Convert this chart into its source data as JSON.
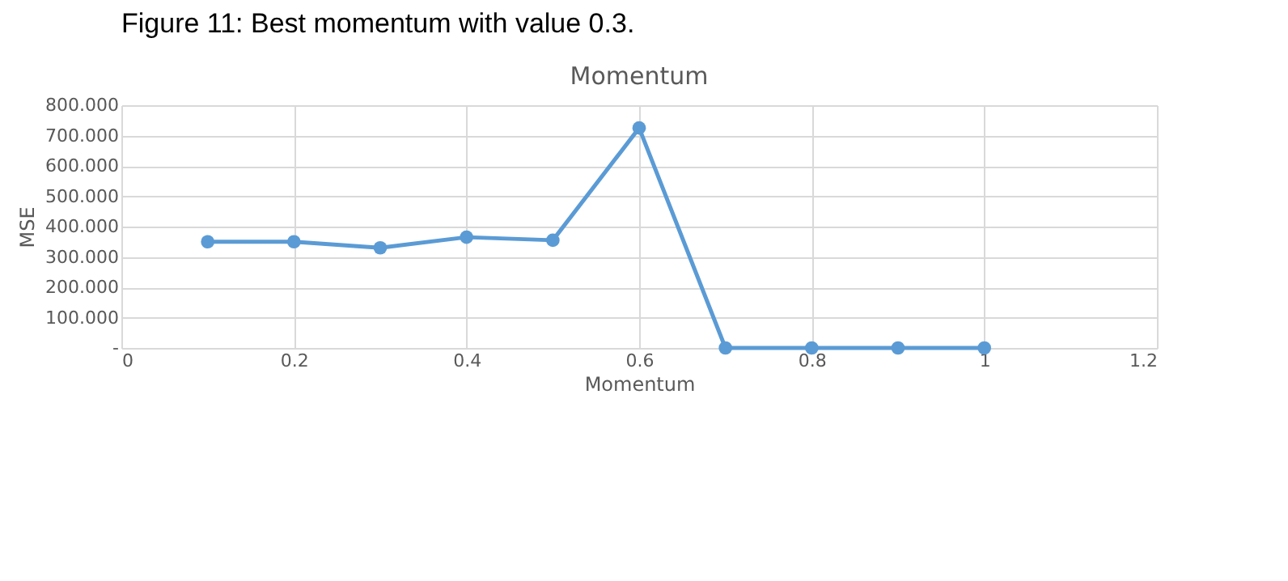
{
  "chart_data": {
    "type": "line",
    "title": "Momentum",
    "xlabel": "Momentum",
    "ylabel": "MSE",
    "annotations": [
      "Figure 11: Best momentum with value 0.3."
    ],
    "x": [
      0.1,
      0.2,
      0.3,
      0.4,
      0.5,
      0.6,
      0.7,
      0.8,
      0.9,
      1.0
    ],
    "series": [
      {
        "color": "#5b9bd5",
        "values": [
          350,
          350,
          330,
          365,
          355,
          725,
          0,
          0,
          0,
          0
        ]
      }
    ],
    "xlim": [
      0,
      1.2
    ],
    "xticks": [
      0,
      0.2,
      0.4,
      0.6,
      0.8,
      1,
      1.2
    ],
    "ylim": [
      0,
      800
    ],
    "yticks": [
      {
        "value": 0,
        "label": "-"
      },
      {
        "value": 100,
        "label": "100.000"
      },
      {
        "value": 200,
        "label": "200.000"
      },
      {
        "value": 300,
        "label": "300.000"
      },
      {
        "value": 400,
        "label": "400.000"
      },
      {
        "value": 500,
        "label": "500.000"
      },
      {
        "value": 600,
        "label": "600.000"
      },
      {
        "value": 700,
        "label": "700.000"
      },
      {
        "value": 800,
        "label": "800.000"
      }
    ],
    "grid": true,
    "marker": "circle",
    "line_style": "solid"
  }
}
